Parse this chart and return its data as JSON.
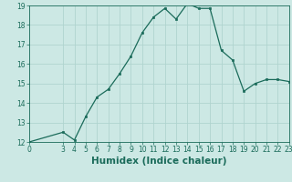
{
  "title": "",
  "xlabel": "Humidex (Indice chaleur)",
  "ylabel": "",
  "x_values": [
    0,
    3,
    4,
    5,
    6,
    7,
    8,
    9,
    10,
    11,
    12,
    13,
    14,
    15,
    16,
    17,
    18,
    19,
    20,
    21,
    22,
    23
  ],
  "y_values": [
    12.0,
    12.5,
    12.1,
    13.3,
    14.3,
    14.7,
    15.5,
    16.4,
    17.6,
    18.4,
    18.85,
    18.3,
    19.1,
    18.85,
    18.85,
    16.7,
    16.2,
    14.6,
    15.0,
    15.2,
    15.2,
    15.1
  ],
  "line_color": "#1a6b5a",
  "marker_color": "#1a6b5a",
  "bg_color": "#cce8e4",
  "grid_color": "#b0d4cf",
  "ylim": [
    12,
    19
  ],
  "xlim": [
    0,
    23
  ],
  "yticks": [
    12,
    13,
    14,
    15,
    16,
    17,
    18,
    19
  ],
  "xticks": [
    0,
    3,
    4,
    5,
    6,
    7,
    8,
    9,
    10,
    11,
    12,
    13,
    14,
    15,
    16,
    17,
    18,
    19,
    20,
    21,
    22,
    23
  ],
  "tick_label_fontsize": 5.5,
  "xlabel_fontsize": 7.5
}
